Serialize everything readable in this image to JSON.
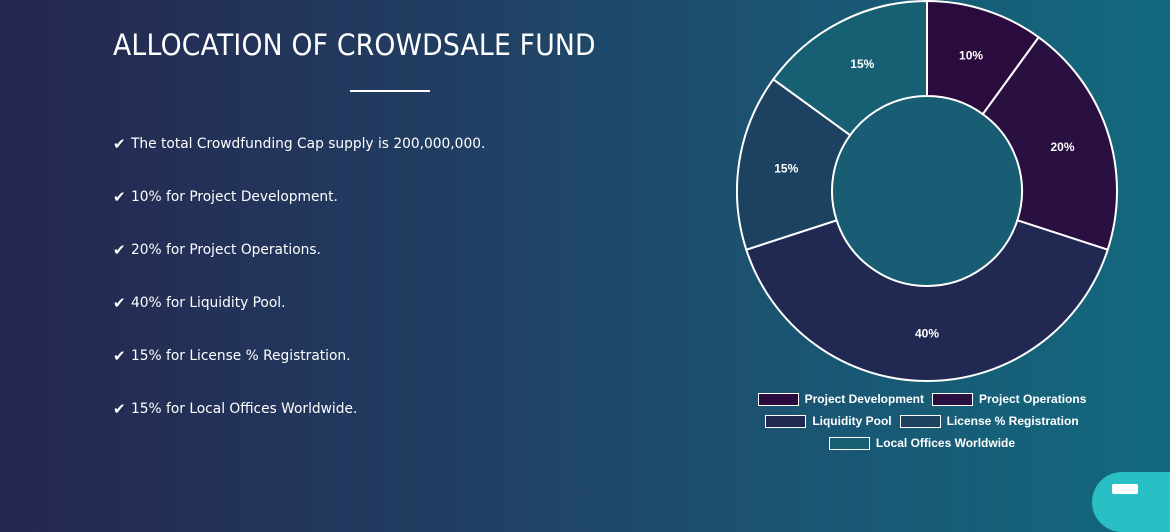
{
  "header": {
    "title": "ALLOCATION OF CROWDSALE FUND"
  },
  "bullets": [
    "The total Crowdfunding Cap supply is 200,000,000.",
    "10% for Project Development.",
    "20% for Project Operations.",
    "40% for Liquidity Pool.",
    "15% for License % Registration.",
    "15% for Local Offices Worldwide."
  ],
  "icons": {
    "bullet": "check-icon",
    "chat": "chat-icon"
  },
  "chart_data": {
    "type": "pie",
    "variant": "doughnut",
    "categories": [
      "Project Development",
      "Project Operations",
      "Liquidity Pool",
      "License % Registration",
      "Local Offices Worldwide"
    ],
    "values": [
      10,
      20,
      40,
      15,
      15
    ],
    "data_labels": [
      "10%",
      "20%",
      "40%",
      "15%",
      "15%"
    ],
    "colors": [
      "#2b0a3d",
      "#291040",
      "#212852",
      "#1d4161",
      "#176073"
    ],
    "border_color": "#ffffff",
    "legend_position": "bottom"
  }
}
